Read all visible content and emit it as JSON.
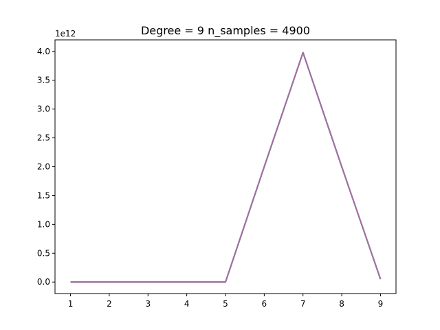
{
  "chart_data": {
    "type": "line",
    "title": "Degree = 9 n_samples = 4900",
    "xlabel": "",
    "ylabel": "",
    "y_offset_label": "1e12",
    "x_ticks": [
      1,
      2,
      3,
      4,
      5,
      6,
      7,
      8,
      9
    ],
    "y_ticks": [
      0.0,
      0.5,
      1.0,
      1.5,
      2.0,
      2.5,
      3.0,
      3.5,
      4.0
    ],
    "y_tick_labels": [
      "0.0",
      "0.5",
      "1.0",
      "1.5",
      "2.0",
      "2.5",
      "3.0",
      "3.5",
      "4.0"
    ],
    "xlim": [
      0.6,
      9.4
    ],
    "ylim": [
      -0.2,
      4.2
    ],
    "grid": false,
    "series": [
      {
        "x": [
          1,
          2,
          3,
          4,
          5,
          6,
          7,
          8,
          9
        ],
        "y": [
          0.0,
          0.0,
          0.0,
          0.0,
          0.0,
          2.0,
          3.98,
          2.0,
          0.05
        ],
        "color": "#1f77b4"
      },
      {
        "x": [
          1,
          2,
          3,
          4,
          5,
          6,
          7,
          8,
          9
        ],
        "y": [
          0.0,
          0.0,
          0.0,
          0.0,
          0.0,
          2.0,
          3.98,
          2.0,
          0.05
        ],
        "color": "#8c6a9a"
      },
      {
        "x": [
          1,
          2,
          3,
          4,
          5,
          6,
          7,
          8,
          9
        ],
        "y": [
          0.0,
          0.0,
          0.0,
          0.0,
          0.0,
          2.0,
          3.98,
          2.0,
          0.05
        ],
        "color": "#a0719f"
      }
    ]
  }
}
